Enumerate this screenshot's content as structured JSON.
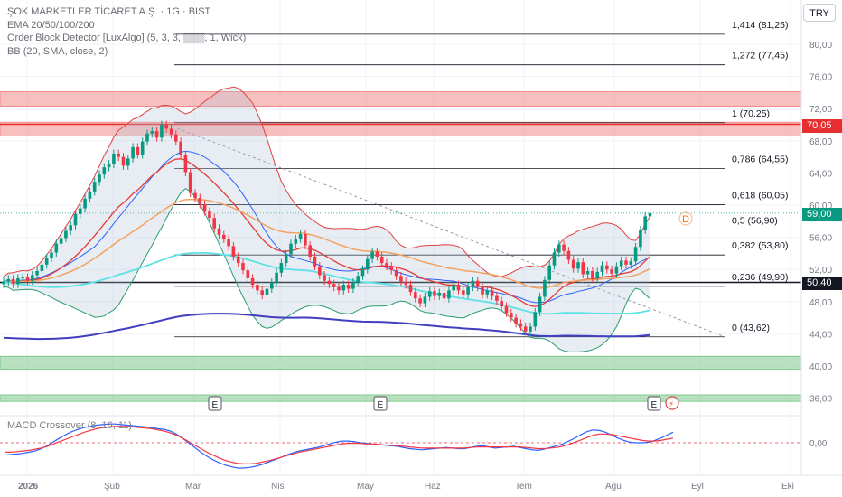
{
  "legend": {
    "title": "ŞOK MARKETLER TİCARET A.Ş. · 1G · BIST",
    "lines": [
      "EMA 20/50/100/200",
      "Order Block Detector [LuxAlgo] (5, 3, 3, ▒▒▒, 1, Wick)",
      "BB (20, SMA, close, 2)"
    ]
  },
  "macd_label": "MACD Crossover (8, 16, 11)",
  "currency": "TRY",
  "price_tags": {
    "current": {
      "value": "59,00",
      "color": "#089981"
    },
    "resistance": {
      "value": "70,05",
      "color": "#e52f2f"
    },
    "support": {
      "value": "50,40",
      "color": "#131722"
    }
  },
  "chart_data": {
    "type": "candlestick",
    "symbol": "ŞOK MARKETLER TİCARET A.Ş.",
    "interval": "1G",
    "exchange": "BIST",
    "y_axis": {
      "ticks": [
        "80,00",
        "76,00",
        "72,00",
        "68,00",
        "64,00",
        "60,00",
        "56,00",
        "52,00",
        "48,00",
        "44,00",
        "40,00",
        "36,00"
      ],
      "values": [
        80,
        76,
        72,
        68,
        64,
        60,
        56,
        52,
        48,
        44,
        40,
        36
      ],
      "range": [
        34.5,
        84
      ]
    },
    "x_axis": {
      "labels": [
        "2026",
        "Şub",
        "Mar",
        "Nis",
        "May",
        "Haz",
        "Tem",
        "Ağu",
        "Eyl",
        "Eki"
      ]
    },
    "fibonacci": [
      {
        "label": "1,414 (81,25)",
        "value": 81.25
      },
      {
        "label": "1,272 (77,45)",
        "value": 77.45
      },
      {
        "label": "1 (70,25)",
        "value": 70.25
      },
      {
        "label": "0,786 (64,55)",
        "value": 64.55
      },
      {
        "label": "0,618 (60,05)",
        "value": 60.05
      },
      {
        "label": "0,5 (56,90)",
        "value": 56.9
      },
      {
        "label": "0,382 (53,80)",
        "value": 53.8
      },
      {
        "label": "0,236 (49,90)",
        "value": 49.9
      },
      {
        "label": "0 (43,62)",
        "value": 43.62
      }
    ],
    "horizontal_levels": [
      {
        "value": 70.05,
        "color": "#e52f2f"
      },
      {
        "value": 50.4,
        "color": "#131722"
      }
    ],
    "zones": [
      {
        "from": 72.3,
        "to": 74.1,
        "color": "#f28b8b"
      },
      {
        "from": 68.6,
        "to": 70.3,
        "color": "#f28b8b"
      },
      {
        "from": 39.6,
        "to": 41.2,
        "color": "#7fc98a"
      },
      {
        "from": 35.6,
        "to": 36.4,
        "color": "#7fc98a"
      }
    ],
    "close": [
      50.5,
      50.8,
      50.2,
      50.9,
      51.0,
      50.6,
      51.3,
      51.8,
      52.6,
      53.4,
      54.1,
      55.2,
      55.9,
      56.8,
      57.5,
      58.9,
      59.6,
      60.8,
      61.7,
      62.9,
      63.8,
      64.7,
      65.1,
      66.4,
      66.0,
      64.9,
      65.8,
      67.2,
      66.3,
      67.9,
      68.9,
      69.2,
      68.4,
      70.0,
      69.5,
      68.8,
      67.9,
      66.2,
      64.1,
      61.5,
      60.9,
      60.1,
      59.2,
      58.4,
      57.1,
      56.3,
      55.8,
      54.9,
      53.6,
      52.8,
      51.9,
      50.9,
      50.1,
      49.4,
      48.8,
      49.6,
      50.4,
      51.6,
      52.8,
      53.9,
      55.2,
      55.8,
      56.4,
      55.0,
      53.6,
      52.4,
      51.3,
      50.6,
      50.2,
      49.8,
      49.4,
      50.1,
      49.6,
      50.4,
      51.2,
      52.0,
      53.3,
      54.2,
      53.6,
      52.8,
      52.4,
      51.9,
      51.2,
      50.5,
      50.1,
      49.2,
      48.4,
      47.8,
      48.6,
      49.3,
      48.7,
      49.1,
      48.4,
      49.4,
      50.1,
      49.4,
      48.9,
      49.8,
      50.6,
      49.8,
      48.9,
      49.4,
      48.7,
      48.1,
      47.4,
      46.6,
      46.0,
      45.3,
      44.9,
      44.3,
      44.9,
      46.7,
      48.6,
      50.7,
      52.5,
      54.1,
      55.1,
      54.3,
      53.2,
      52.1,
      52.9,
      51.4,
      51.8,
      50.9,
      51.7,
      52.5,
      52.0,
      51.5,
      52.4,
      53.1,
      52.6,
      53.0,
      54.8,
      56.9,
      58.6,
      59.0
    ],
    "macd": [
      -2.1,
      -2.0,
      -1.9,
      -1.8,
      -1.6,
      -1.4,
      -1.0,
      -0.5,
      0.2,
      0.8,
      1.4,
      1.9,
      2.3,
      2.6,
      2.8,
      3.0,
      3.1,
      3.2,
      3.2,
      3.1,
      3.0,
      2.9,
      2.8,
      2.7,
      2.6,
      2.4,
      2.3,
      2.0,
      1.5,
      0.8,
      0.0,
      -0.8,
      -1.6,
      -2.3,
      -2.9,
      -3.4,
      -3.8,
      -4.1,
      -4.3,
      -4.3,
      -4.2,
      -4.0,
      -3.7,
      -3.3,
      -2.9,
      -2.5,
      -2.1,
      -1.7,
      -1.4,
      -1.2,
      -1.0,
      -0.8,
      -0.5,
      -0.2,
      0.1,
      0.3,
      0.3,
      0.2,
      0.0,
      -0.1,
      -0.2,
      -0.3,
      -0.4,
      -0.5,
      -0.6,
      -0.8,
      -1.0,
      -1.1,
      -1.2,
      -1.1,
      -1.0,
      -0.9,
      -0.8,
      -0.9,
      -1.0,
      -1.0,
      -0.8,
      -0.6,
      -0.5,
      -0.7,
      -0.9,
      -0.8,
      -0.7,
      -0.6,
      -0.8,
      -1.0,
      -1.2,
      -1.3,
      -1.1,
      -0.8,
      -0.5,
      -0.2,
      0.3,
      0.8,
      1.4,
      1.9,
      2.2,
      2.1,
      1.8,
      1.3,
      0.8,
      0.4,
      0.1,
      0.0,
      0.0,
      0.1,
      0.4,
      0.8,
      1.3,
      1.8
    ],
    "macd_signal": [
      -1.6,
      -1.6,
      -1.5,
      -1.4,
      -1.3,
      -1.1,
      -0.9,
      -0.6,
      -0.2,
      0.2,
      0.6,
      1.0,
      1.4,
      1.8,
      2.1,
      2.4,
      2.6,
      2.7,
      2.8,
      2.8,
      2.8,
      2.7,
      2.6,
      2.5,
      2.4,
      2.2,
      2.0,
      1.7,
      1.3,
      0.8,
      0.2,
      -0.4,
      -1.0,
      -1.6,
      -2.1,
      -2.6,
      -3.0,
      -3.3,
      -3.5,
      -3.6,
      -3.6,
      -3.5,
      -3.3,
      -3.1,
      -2.8,
      -2.5,
      -2.2,
      -1.9,
      -1.6,
      -1.4,
      -1.2,
      -1.0,
      -0.8,
      -0.6,
      -0.4,
      -0.2,
      -0.1,
      -0.1,
      -0.1,
      -0.2,
      -0.2,
      -0.3,
      -0.4,
      -0.4,
      -0.5,
      -0.6,
      -0.7,
      -0.8,
      -0.9,
      -0.9,
      -0.9,
      -0.9,
      -0.9,
      -0.9,
      -0.9,
      -0.9,
      -0.8,
      -0.7,
      -0.7,
      -0.7,
      -0.7,
      -0.7,
      -0.7,
      -0.7,
      -0.7,
      -0.8,
      -0.9,
      -1.0,
      -1.0,
      -0.9,
      -0.8,
      -0.6,
      -0.3,
      0.1,
      0.5,
      0.9,
      1.3,
      1.5,
      1.5,
      1.4,
      1.2,
      1.0,
      0.8,
      0.6,
      0.4,
      0.3,
      0.3,
      0.4,
      0.6,
      0.8
    ],
    "macd_zero_label": "0,00",
    "earnings_markers": [
      "E",
      "E",
      "E"
    ],
    "signal_marker": "D"
  }
}
